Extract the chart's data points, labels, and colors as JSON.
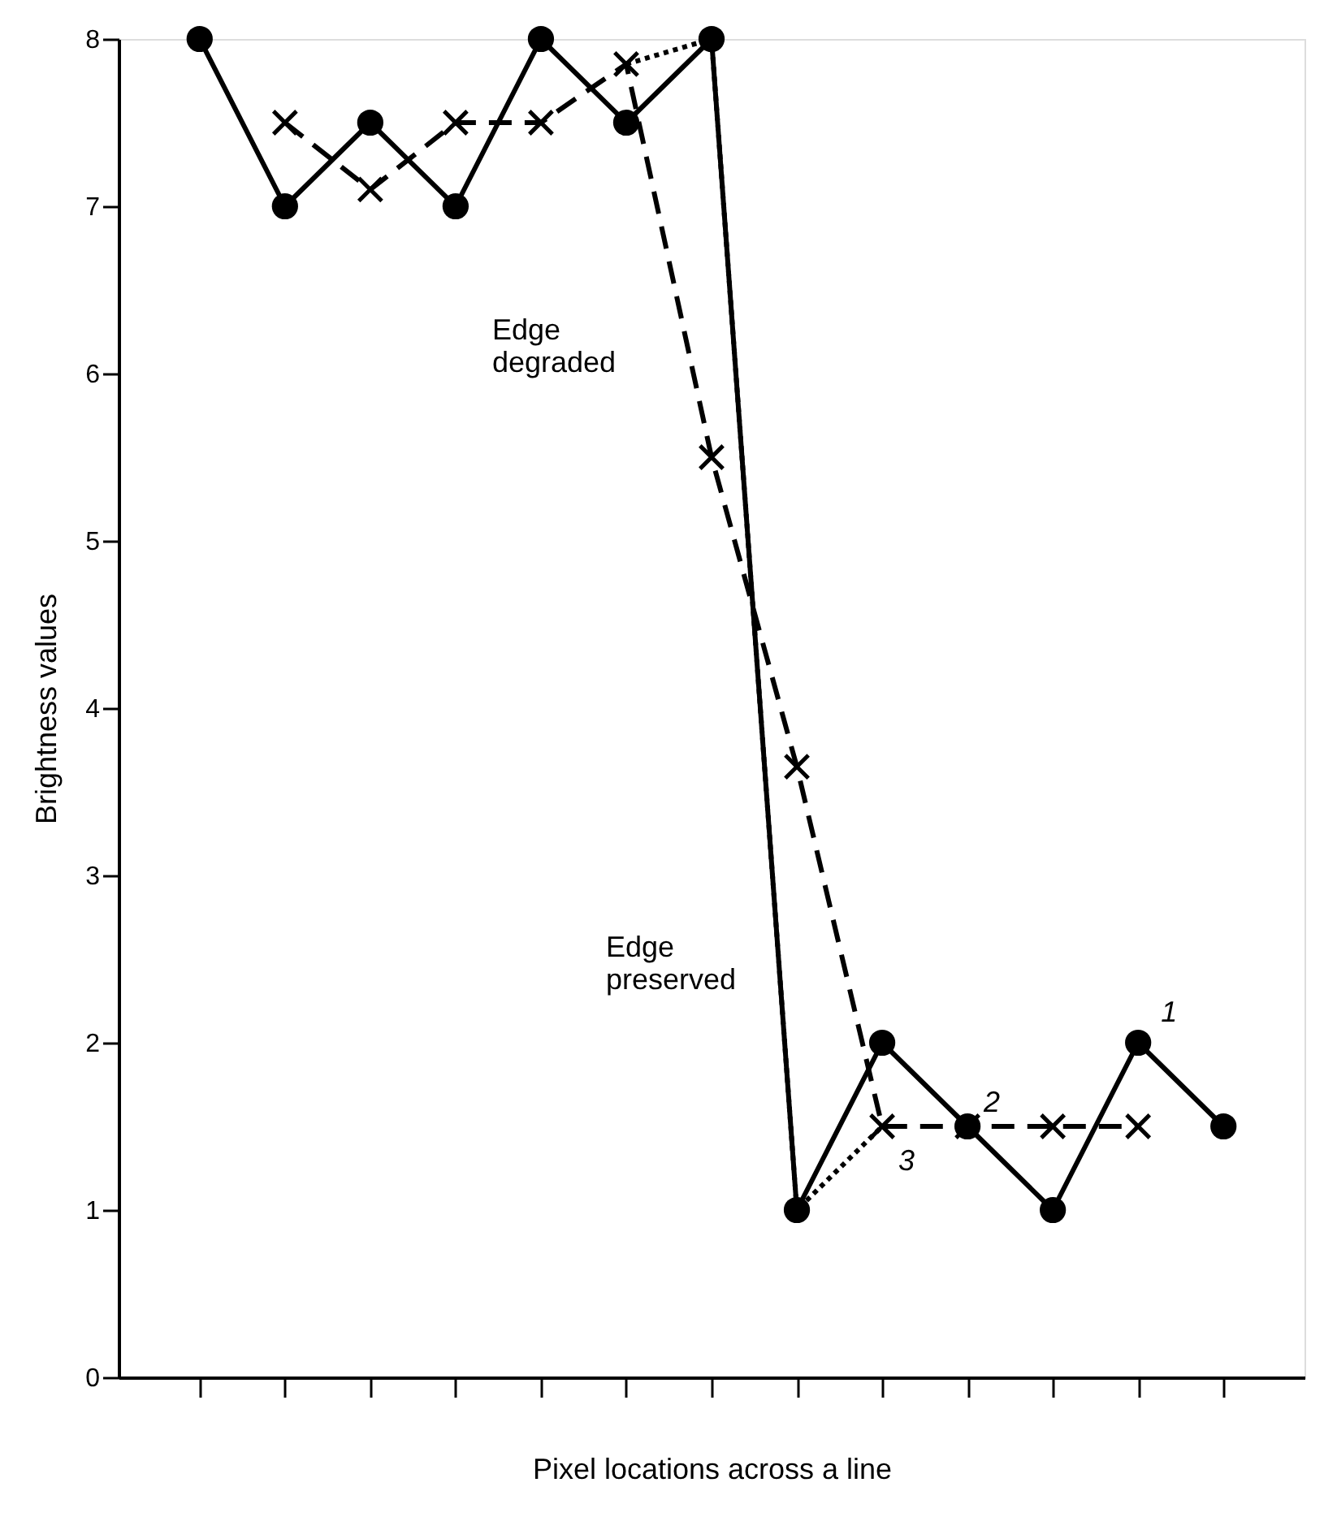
{
  "chart_data": {
    "type": "line",
    "xlabel": "Pixel locations across a line",
    "ylabel": "Brightness values",
    "categories": [
      null,
      null,
      null,
      null,
      null,
      null,
      null,
      null,
      null,
      null,
      null,
      null,
      null
    ],
    "ylim": [
      0,
      8
    ],
    "yticks": [
      0,
      1,
      2,
      3,
      4,
      5,
      6,
      7,
      8
    ],
    "grid": false,
    "series": [
      {
        "name": "1",
        "color": "#000000",
        "marker": "circle",
        "line_style": "solid",
        "values": [
          8,
          7,
          7.5,
          7,
          8,
          7.5,
          8,
          1,
          2,
          1.5,
          1,
          2,
          1.5
        ]
      },
      {
        "name": "2",
        "color": "#000000",
        "marker": "cross",
        "line_style": "dashed",
        "values": [
          null,
          7.5,
          7.1,
          7.5,
          7.5,
          7.85,
          5.5,
          3.65,
          1.5,
          1.5,
          1.5,
          1.5,
          null
        ]
      },
      {
        "name": "3",
        "color": "#000000",
        "marker": "none",
        "line_style": "dotted",
        "values": [
          null,
          null,
          null,
          null,
          null,
          7.85,
          8,
          1,
          1.5,
          null,
          null,
          null,
          null
        ]
      }
    ],
    "annotations": [
      "Edge degraded",
      "Edge preserved"
    ]
  }
}
